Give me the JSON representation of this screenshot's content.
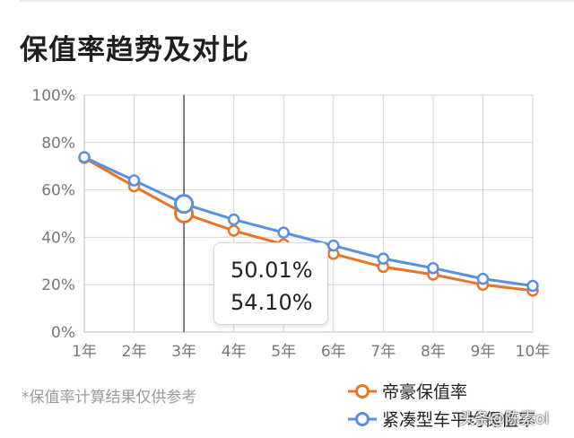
{
  "header": {
    "title": "保值率趋势及对比"
  },
  "colors": {
    "series1": "#ea7424",
    "series2": "#5b8fe0",
    "grid": "#d4d4d4",
    "axis": "#bdbdbd",
    "cursor": "#555555"
  },
  "chart_data": {
    "type": "line",
    "categories": [
      "1年",
      "2年",
      "3年",
      "4年",
      "5年",
      "6年",
      "7年",
      "8年",
      "9年",
      "10年"
    ],
    "series": [
      {
        "name": "帝豪保值率",
        "values": [
          73.5,
          61.5,
          50.01,
          42.8,
          37.0,
          33.0,
          27.5,
          24.3,
          20.0,
          17.5
        ]
      },
      {
        "name": "紧凑型车平均保值率",
        "values": [
          73.8,
          64.0,
          54.1,
          47.5,
          42.0,
          36.5,
          31.0,
          27.0,
          22.5,
          19.5
        ]
      }
    ],
    "ylim": [
      0,
      100
    ],
    "yticks": [
      "0%",
      "20%",
      "40%",
      "60%",
      "80%",
      "100%"
    ],
    "grid": true,
    "legend": "bottom-right",
    "highlight_index": 2
  },
  "tooltip": {
    "value1": "50.01%",
    "value2": "54.10%"
  },
  "footer": {
    "note": "*保值率计算结果仅供参考"
  },
  "watermark": "头条@陈素ol"
}
